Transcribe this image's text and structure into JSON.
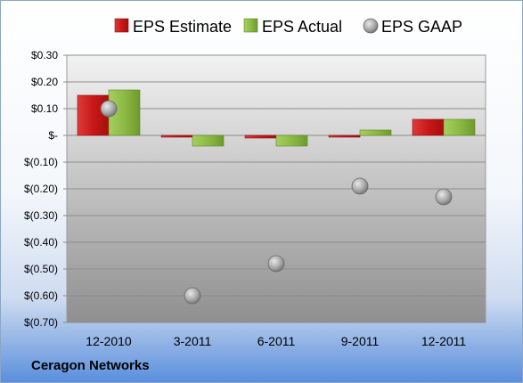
{
  "company": "Ceragon Networks",
  "legend": [
    {
      "label": "EPS Estimate",
      "color": "#d42a2a",
      "shape": "square"
    },
    {
      "label": "EPS Actual",
      "color": "#8fbf4a",
      "shape": "square"
    },
    {
      "label": "EPS GAAP",
      "color": "#b0b0b0",
      "shape": "circle"
    }
  ],
  "chart_data": {
    "type": "bar",
    "categories": [
      "12-2010",
      "3-2011",
      "6-2011",
      "9-2011",
      "12-2011"
    ],
    "series": [
      {
        "name": "EPS Estimate",
        "type": "bar",
        "color": "#d42a2a",
        "values": [
          0.15,
          -0.005,
          -0.01,
          -0.005,
          0.06
        ]
      },
      {
        "name": "EPS Actual",
        "type": "bar",
        "color": "#8fbf4a",
        "values": [
          0.17,
          -0.04,
          -0.04,
          0.02,
          0.06
        ]
      },
      {
        "name": "EPS GAAP",
        "type": "scatter",
        "color": "#b0b0b0",
        "values": [
          0.1,
          -0.6,
          -0.48,
          -0.19,
          -0.23
        ]
      }
    ],
    "ylim": [
      -0.7,
      0.3
    ],
    "yticks": [
      0.3,
      0.2,
      0.1,
      0,
      -0.1,
      -0.2,
      -0.3,
      -0.4,
      -0.5,
      -0.6,
      -0.7
    ],
    "ytick_labels": [
      "$0.30",
      "$0.20",
      "$0.10",
      "$-",
      "$(0.10)",
      "$(0.20)",
      "$(0.30)",
      "$(0.40)",
      "$(0.50)",
      "$(0.60)",
      "$(0.70)"
    ],
    "grid": true,
    "legend_position": "top"
  }
}
